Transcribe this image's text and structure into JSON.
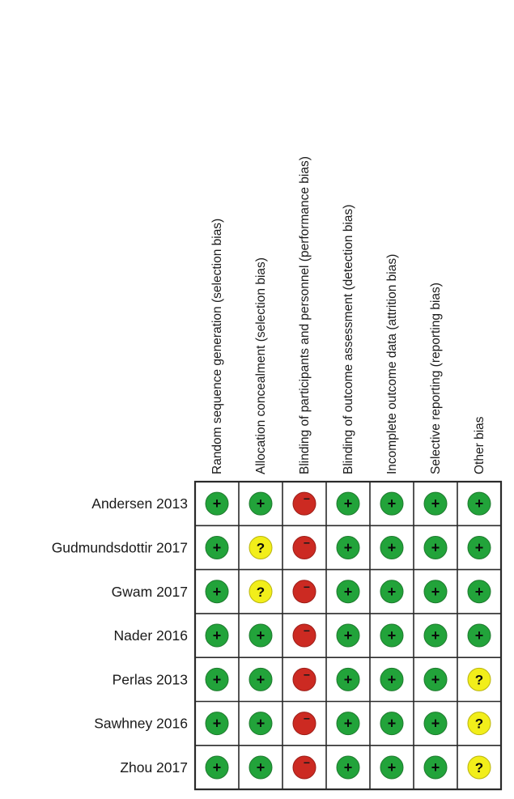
{
  "chart_data": {
    "type": "table",
    "title": "",
    "columns": [
      "Random sequence generation (selection bias)",
      "Allocation concealment (selection bias)",
      "Blinding of participants and personnel (performance bias)",
      "Blinding of outcome assessment (detection bias)",
      "Incomplete outcome data (attrition bias)",
      "Selective reporting (reporting bias)",
      "Other bias"
    ],
    "rows": [
      "Andersen 2013",
      "Gudmundsdottir 2017",
      "Gwam 2017",
      "Nader 2016",
      "Perlas 2013",
      "Sawhney 2016",
      "Zhou 2017"
    ],
    "values": [
      [
        "low",
        "low",
        "high",
        "low",
        "low",
        "low",
        "low"
      ],
      [
        "low",
        "unclear",
        "high",
        "low",
        "low",
        "low",
        "low"
      ],
      [
        "low",
        "unclear",
        "high",
        "low",
        "low",
        "low",
        "low"
      ],
      [
        "low",
        "low",
        "high",
        "low",
        "low",
        "low",
        "low"
      ],
      [
        "low",
        "low",
        "high",
        "low",
        "low",
        "low",
        "unclear"
      ],
      [
        "low",
        "low",
        "high",
        "low",
        "low",
        "low",
        "unclear"
      ],
      [
        "low",
        "low",
        "high",
        "low",
        "low",
        "low",
        "unclear"
      ]
    ],
    "symbols": {
      "low": "+",
      "unclear": "?",
      "high": "−"
    },
    "colors": {
      "low": "#22a33a",
      "unclear": "#f2ee1a",
      "high": "#cc2a22"
    }
  }
}
